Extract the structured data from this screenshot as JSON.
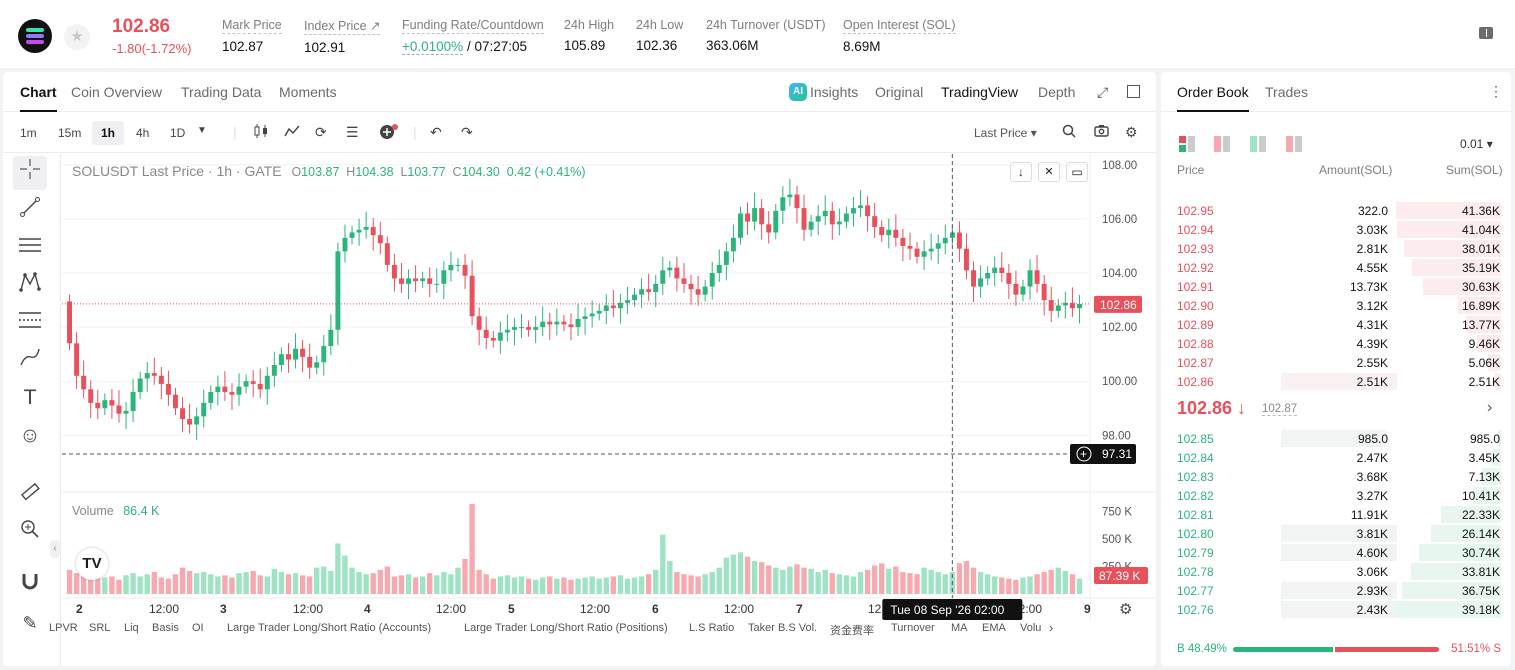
{
  "header": {
    "price": "102.86",
    "change": "-1.80(-1.72%)",
    "stats": [
      {
        "label": "Mark Price",
        "value": "102.87"
      },
      {
        "label": "Index Price ↗",
        "value": "102.91"
      },
      {
        "label": "Funding Rate/Countdown",
        "value_green": "+0.0100%",
        "value": " / 07:27:05"
      },
      {
        "label": "24h High",
        "value": "105.89"
      },
      {
        "label": "24h Low",
        "value": "102.36"
      },
      {
        "label": "24h Turnover (USDT)",
        "value": "363.06M"
      },
      {
        "label": "Open Interest (SOL)",
        "value": "8.69M"
      }
    ]
  },
  "chart_tabs": [
    "Chart",
    "Coin Overview",
    "Trading Data",
    "Moments"
  ],
  "chart_right_tabs": {
    "insights": "Insights",
    "original": "Original",
    "tradingview": "TradingView",
    "depth": "Depth",
    "ai": "AI"
  },
  "timeframes": [
    "1m",
    "15m",
    "1h",
    "4h",
    "1D"
  ],
  "toolbar": {
    "last_price": "Last Price ▾"
  },
  "legend": {
    "title": "SOLUSDT Last Price · 1h · GATE",
    "o_label": "O",
    "o": "103.87",
    "h_label": "H",
    "h": "104.38",
    "l_label": "L",
    "l": "103.77",
    "c_label": "C",
    "c": "104.30",
    "change": "0.42 (+0.41%)"
  },
  "volume_legend": {
    "label": "Volume",
    "value": "86.4 K"
  },
  "chart_data": {
    "type": "candlestick",
    "y_axis": [
      "108.00",
      "106.00",
      "104.00",
      "102.00",
      "100.00",
      "98.00"
    ],
    "ylim": [
      96.2,
      108.4
    ],
    "vol_axis": [
      "750 K",
      "500 K",
      "250 K"
    ],
    "vol_max": 820000,
    "x_ticks": [
      "2",
      "12:00",
      "3",
      "12:00",
      "4",
      "12:00",
      "5",
      "12:00",
      "6",
      "12:00",
      "7",
      "12:00",
      "8",
      "12:00",
      "9"
    ],
    "current_price": "102.86",
    "current_price_value": 102.86,
    "crosshair_price": "97.31",
    "crosshair_price_value": 97.31,
    "crosshair_time": "Tue 08 Sep '26   02:00",
    "last_volume": "87.39 K",
    "prices": [
      101.4,
      100.2,
      99.7,
      99.2,
      99.0,
      99.3,
      99.1,
      98.8,
      98.9,
      99.6,
      100.1,
      100.3,
      100.2,
      99.9,
      99.5,
      99.0,
      98.6,
      98.4,
      98.7,
      99.2,
      99.6,
      99.8,
      99.6,
      99.5,
      99.8,
      100.0,
      99.9,
      99.7,
      100.2,
      100.6,
      101.0,
      100.8,
      101.2,
      100.9,
      100.5,
      100.7,
      101.3,
      101.9,
      104.8,
      105.3,
      105.5,
      105.6,
      105.7,
      105.4,
      105.1,
      104.3,
      103.8,
      103.6,
      103.8,
      103.7,
      103.8,
      103.6,
      103.6,
      104.1,
      104.3,
      104.3,
      103.9,
      102.4,
      101.9,
      101.6,
      101.5,
      101.8,
      101.9,
      102.0,
      102.0,
      101.9,
      102.0,
      102.2,
      102.1,
      102.2,
      102.1,
      102.0,
      102.3,
      102.4,
      102.5,
      102.6,
      102.8,
      102.7,
      102.9,
      103.0,
      103.2,
      103.4,
      103.3,
      103.6,
      104.1,
      104.2,
      103.8,
      103.6,
      103.4,
      103.2,
      103.5,
      104.0,
      104.3,
      104.8,
      105.3,
      106.2,
      105.9,
      106.4,
      105.8,
      105.5,
      106.3,
      106.8,
      106.9,
      106.4,
      105.6,
      105.9,
      106.1,
      106.3,
      105.8,
      105.9,
      106.2,
      106.4,
      106.5,
      106.1,
      105.7,
      105.4,
      105.6,
      105.3,
      105.0,
      104.9,
      104.6,
      104.8,
      104.9,
      105.1,
      105.3,
      105.5,
      104.9,
      104.1,
      103.5,
      103.8,
      104.0,
      104.2,
      104.0,
      103.6,
      103.2,
      103.5,
      104.1,
      103.6,
      103.0,
      102.6,
      102.8,
      102.9,
      102.7,
      102.86
    ],
    "volumes": [
      220,
      190,
      170,
      200,
      180,
      150,
      160,
      130,
      170,
      190,
      160,
      180,
      200,
      150,
      140,
      180,
      240,
      210,
      190,
      200,
      180,
      160,
      170,
      150,
      190,
      200,
      210,
      170,
      160,
      230,
      200,
      180,
      190,
      170,
      160,
      240,
      250,
      210,
      460,
      350,
      240,
      200,
      180,
      190,
      220,
      250,
      160,
      170,
      180,
      150,
      160,
      190,
      170,
      200,
      180,
      240,
      320,
      820,
      220,
      180,
      140,
      160,
      170,
      150,
      160,
      140,
      130,
      150,
      160,
      140,
      150,
      130,
      140,
      150,
      160,
      140,
      150,
      160,
      170,
      140,
      150,
      160,
      180,
      220,
      540,
      300,
      200,
      180,
      170,
      160,
      180,
      200,
      240,
      330,
      360,
      380,
      340,
      300,
      290,
      260,
      240,
      220,
      250,
      270,
      240,
      230,
      200,
      220,
      190,
      180,
      170,
      160,
      200,
      220,
      260,
      280,
      230,
      250,
      200,
      190,
      180,
      240,
      220,
      200,
      180,
      200,
      280,
      300,
      240,
      200,
      180,
      160,
      150,
      140,
      130,
      150,
      160,
      180,
      200,
      220,
      240,
      210,
      180,
      140
    ],
    "candle_start": 102.95,
    "crosshair_x_index": 125
  },
  "indicators": [
    "LPVR",
    "SRL",
    "Liq",
    "Basis",
    "OI",
    "Large Trader Long/Short Ratio (Accounts)",
    "Large Trader Long/Short Ratio (Positions)",
    "L.S Ratio",
    "Taker B.S Vol.",
    "资金费率",
    "Turnover",
    "MA",
    "EMA",
    "Volu"
  ],
  "order_book": {
    "tabs": [
      "Order Book",
      "Trades"
    ],
    "precision": "0.01 ▾",
    "headers": {
      "price": "Price",
      "amount": "Amount(SOL)",
      "sum": "Sum(SOL)"
    },
    "asks": [
      {
        "price": "102.95",
        "amount": "322.0",
        "sum": "41.36K",
        "depth": 1.0,
        "own": 0.0
      },
      {
        "price": "102.94",
        "amount": "3.03K",
        "sum": "41.04K",
        "depth": 0.99,
        "own": 0.0
      },
      {
        "price": "102.93",
        "amount": "2.81K",
        "sum": "38.01K",
        "depth": 0.92,
        "own": 0.0
      },
      {
        "price": "102.92",
        "amount": "4.55K",
        "sum": "35.19K",
        "depth": 0.85,
        "own": 0.0
      },
      {
        "price": "102.91",
        "amount": "13.73K",
        "sum": "30.63K",
        "depth": 0.74,
        "own": 0.0
      },
      {
        "price": "102.90",
        "amount": "3.12K",
        "sum": "16.89K",
        "depth": 0.41,
        "own": 0.0
      },
      {
        "price": "102.89",
        "amount": "4.31K",
        "sum": "13.77K",
        "depth": 0.33,
        "own": 0.0
      },
      {
        "price": "102.88",
        "amount": "4.39K",
        "sum": "9.46K",
        "depth": 0.23,
        "own": 0.0
      },
      {
        "price": "102.87",
        "amount": "2.55K",
        "sum": "5.06K",
        "depth": 0.12,
        "own": 0.0
      },
      {
        "price": "102.86",
        "amount": "2.51K",
        "sum": "2.51K",
        "depth": 0.06,
        "own": 0.55
      }
    ],
    "mid_price": "102.86 ↓",
    "mid_mark": "102.87",
    "bids": [
      {
        "price": "102.85",
        "amount": "985.0",
        "sum": "985.0",
        "depth": 0.03,
        "own": 0.5
      },
      {
        "price": "102.84",
        "amount": "2.47K",
        "sum": "3.45K",
        "depth": 0.09,
        "own": 0.0
      },
      {
        "price": "102.83",
        "amount": "3.68K",
        "sum": "7.13K",
        "depth": 0.18,
        "own": 0.0
      },
      {
        "price": "102.82",
        "amount": "3.27K",
        "sum": "10.41K",
        "depth": 0.27,
        "own": 0.0
      },
      {
        "price": "102.81",
        "amount": "11.91K",
        "sum": "22.33K",
        "depth": 0.57,
        "own": 0.0
      },
      {
        "price": "102.80",
        "amount": "3.81K",
        "sum": "26.14K",
        "depth": 0.67,
        "own": 0.55
      },
      {
        "price": "102.79",
        "amount": "4.60K",
        "sum": "30.74K",
        "depth": 0.78,
        "own": 0.55
      },
      {
        "price": "102.78",
        "amount": "3.06K",
        "sum": "33.81K",
        "depth": 0.86,
        "own": 0.0
      },
      {
        "price": "102.77",
        "amount": "2.93K",
        "sum": "36.75K",
        "depth": 0.94,
        "own": 0.55
      },
      {
        "price": "102.76",
        "amount": "2.43K",
        "sum": "39.18K",
        "depth": 1.0,
        "own": 0.55
      }
    ],
    "buy_ratio": "B  48.49%",
    "sell_ratio": "51.51%  S",
    "buy_fraction": 0.4849
  },
  "colors": {
    "up": "#2bb57b",
    "down": "#e8505b",
    "up_vol": "#9ee3c4",
    "down_vol": "#f7a9b0"
  }
}
